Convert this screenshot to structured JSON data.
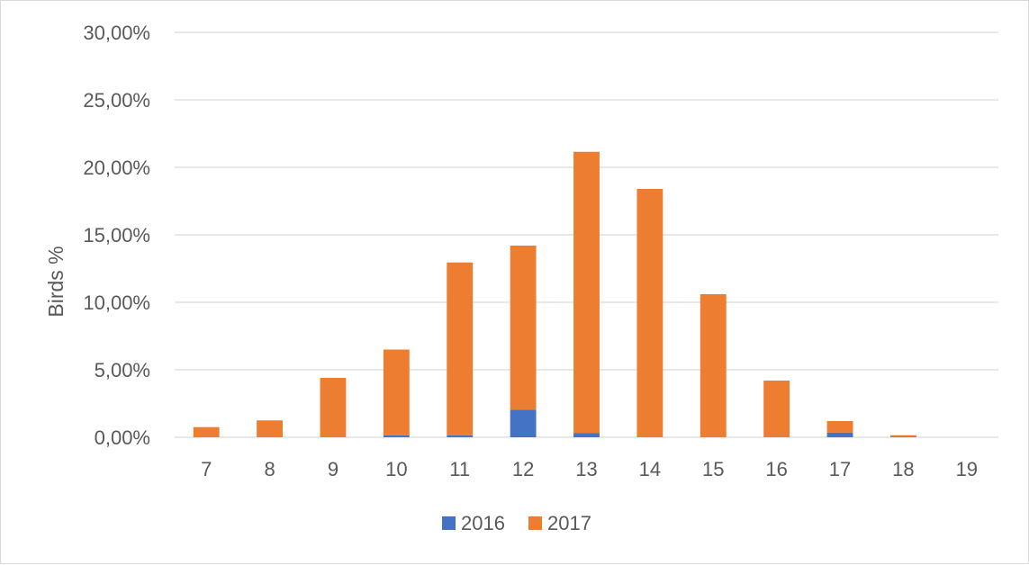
{
  "chart_data": {
    "type": "bar",
    "stacked": true,
    "categories": [
      "7",
      "8",
      "9",
      "10",
      "11",
      "12",
      "13",
      "14",
      "15",
      "16",
      "17",
      "18",
      "19"
    ],
    "series": [
      {
        "name": "2016",
        "color": "#4472c4",
        "values": [
          0.0,
          0.0,
          0.0,
          0.15,
          0.15,
          2.05,
          0.3,
          0.0,
          0.0,
          0.0,
          0.35,
          0.05,
          0.0
        ]
      },
      {
        "name": "2017",
        "color": "#ed7d31",
        "values": [
          0.75,
          1.25,
          4.4,
          6.35,
          12.8,
          12.15,
          20.85,
          18.4,
          10.6,
          4.2,
          0.85,
          0.1,
          0.0
        ]
      }
    ],
    "ylabel": "Birds %",
    "xlabel": "",
    "ylim": [
      0,
      30
    ],
    "yticks": [
      "0,00%",
      "5,00%",
      "10,00%",
      "15,00%",
      "20,00%",
      "25,00%",
      "30,00%"
    ],
    "grid": true,
    "legend": "bottom",
    "gridline_color": "#d9d9d9"
  }
}
